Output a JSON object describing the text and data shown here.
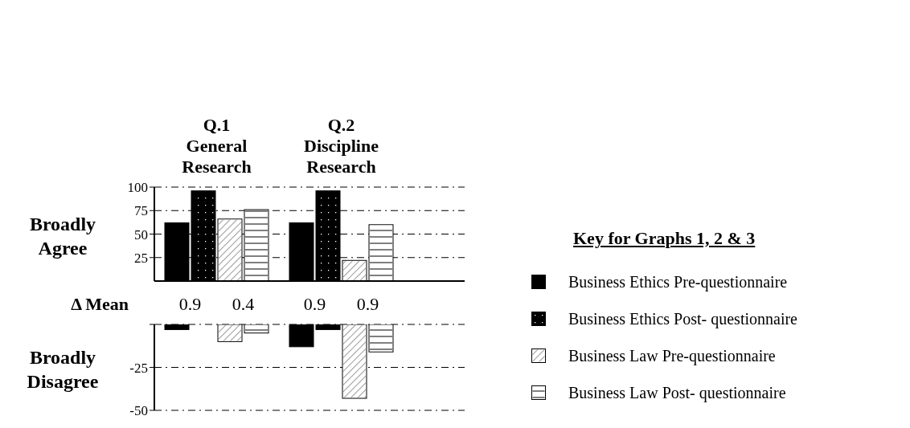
{
  "chart_data": [
    {
      "type": "bar",
      "categories": [
        "Q.1 General Research",
        "Q.2 Discipline Research"
      ],
      "ylabel": "Broadly Agree",
      "ylim": [
        0,
        100
      ],
      "yticks": [
        25,
        50,
        75,
        100
      ],
      "grid": "y",
      "legend": "right",
      "legend_title": "Key for Graphs 1, 2 & 3",
      "series": [
        {
          "name": "Business Ethics Pre-questionnaire",
          "color": "#000000",
          "values": [
            62,
            62
          ]
        },
        {
          "name": "Business Ethics Post- questionnaire",
          "color": "#000000",
          "values": [
            96,
            96
          ]
        },
        {
          "name": "Business Law Pre-questionnaire",
          "color": "#ffffff",
          "values": [
            66,
            22
          ]
        },
        {
          "name": "Business Law Post- questionnaire",
          "color": "#ffffff",
          "values": [
            76,
            60
          ]
        }
      ]
    },
    {
      "type": "bar",
      "categories": [
        null,
        null
      ],
      "ylabel": "Broadly Disagree",
      "ylim": [
        -50,
        0
      ],
      "yticks": [
        {
          "value": 0,
          "label": null
        },
        -25,
        -50
      ],
      "grid": "y",
      "tick_labels": "y",
      "annotations": [
        "Δ Mean",
        "0.9",
        "0.4",
        "0.9",
        "0.9"
      ],
      "series": [
        {
          "color": "#000000",
          "values": [
            -3,
            -13
          ]
        },
        {
          "color": "#000000",
          "values": [
            null,
            -3
          ]
        },
        {
          "color": "#ffffff",
          "values": [
            -10,
            -43
          ]
        },
        {
          "color": "#ffffff",
          "values": [
            -5,
            -16
          ]
        }
      ]
    }
  ]
}
